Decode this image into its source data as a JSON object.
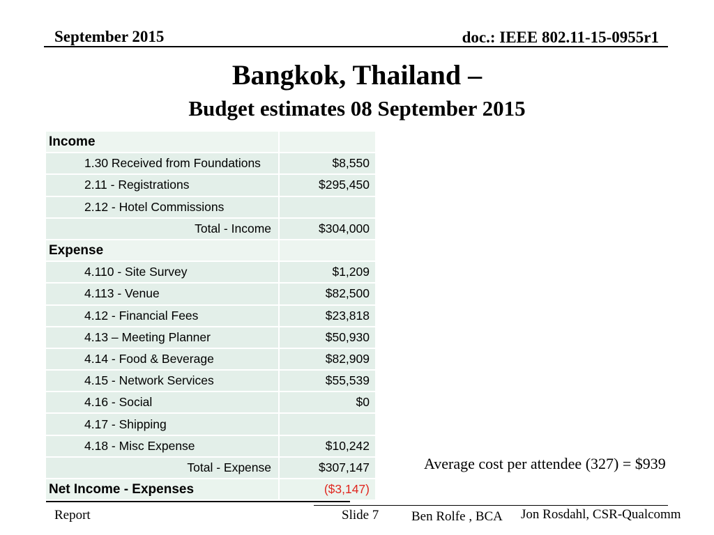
{
  "header": {
    "date": "September 2015",
    "doc": "doc.: IEEE 802.11-15-0955r1"
  },
  "title": {
    "line1": "Bangkok, Thailand –",
    "line2": "Budget estimates 08 September 2015"
  },
  "table": {
    "rows": [
      {
        "type": "section",
        "label": "Income",
        "value": ""
      },
      {
        "type": "item",
        "label": "1.30  Received from Foundations",
        "value": "$8,550"
      },
      {
        "type": "item",
        "label": "2.11 - Registrations",
        "value": "$295,450"
      },
      {
        "type": "item",
        "label": "2.12 - Hotel Commissions",
        "value": ""
      },
      {
        "type": "total",
        "label": "Total - Income",
        "value": "$304,000"
      },
      {
        "type": "section",
        "label": "Expense",
        "value": ""
      },
      {
        "type": "item",
        "label": "4.110 - Site Survey",
        "value": "$1,209"
      },
      {
        "type": "item",
        "label": "4.113 - Venue",
        "value": "$82,500"
      },
      {
        "type": "item",
        "label": "4.12 - Financial Fees",
        "value": "$23,818"
      },
      {
        "type": "item",
        "label": "4.13 – Meeting Planner",
        "value": "$50,930"
      },
      {
        "type": "item",
        "label": "4.14 - Food & Beverage",
        "value": "$82,909"
      },
      {
        "type": "item",
        "label": "4.15 - Network Services",
        "value": "$55,539"
      },
      {
        "type": "item",
        "label": "4.16 - Social",
        "value": "$0"
      },
      {
        "type": "item",
        "label": "4.17 - Shipping",
        "value": ""
      },
      {
        "type": "item",
        "label": "4.18 - Misc Expense",
        "value": "$10,242"
      },
      {
        "type": "total",
        "label": "Total - Expense",
        "value": "$307,147"
      },
      {
        "type": "net",
        "label": "Net Income - Expenses",
        "value": "($3,147)"
      }
    ]
  },
  "note": "Average cost per attendee (327) = $939",
  "footer": {
    "report": "Report",
    "slide": "Slide 7",
    "author1": "Ben Rolfe , BCA",
    "author2": "Jon Rosdahl, CSR-Qualcomm"
  },
  "colors": {
    "row_bg": "#e3efe9",
    "row_bg_section": "#edf5f0",
    "negative_value": "#e02820",
    "text": "#000000"
  }
}
